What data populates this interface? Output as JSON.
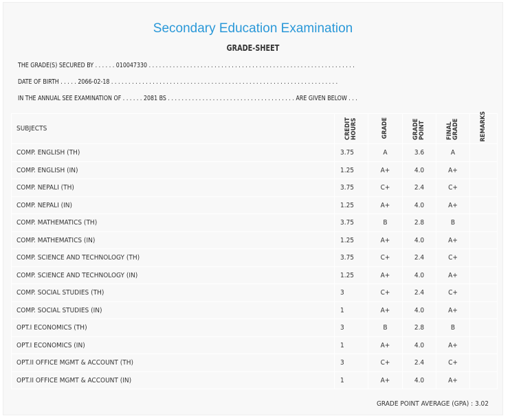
{
  "header": {
    "title": "Secondary Education Examination",
    "subtitle": "GRADE-SHEET"
  },
  "info": {
    "secured_by": "THE GRADE(S) SECURED BY . . . . . . 010047330 . . . . . . . . . . . . . . . . . . . . . . . . . . . . . . . . . . . . . . . . . . . . . . . . . . . . . . . . . . . .",
    "dob": "DATE OF BIRTH . . . . . 2066-02-18 . . . . . . . . . . . . . . . . . . . . . . . . . . . . . . . . . . . . . . . . . . . . . . . . . . . . . . . . . . . . . . . . . .",
    "exam": "IN THE ANNUAL SEE EXAMINATION OF . . . . . . 2081 BS . . . . . . . . . . . . . . . . . . . . . . . . . . . . . . . . . . . . . ARE GIVEN BELOW . . ."
  },
  "table": {
    "headers": [
      "SUBJECTS",
      "CREDIT HOURS",
      "GRADE",
      "GRADE POINT",
      "FINAL GRADE",
      "REMARKS"
    ],
    "rows": [
      [
        "COMP. ENGLISH (TH)",
        "3.75",
        "A",
        "3.6",
        "A",
        ""
      ],
      [
        "COMP. ENGLISH (IN)",
        "1.25",
        "A+",
        "4.0",
        "A+",
        ""
      ],
      [
        "COMP. NEPALI (TH)",
        "3.75",
        "C+",
        "2.4",
        "C+",
        ""
      ],
      [
        "COMP. NEPALI (IN)",
        "1.25",
        "A+",
        "4.0",
        "A+",
        ""
      ],
      [
        "COMP. MATHEMATICS (TH)",
        "3.75",
        "B",
        "2.8",
        "B",
        ""
      ],
      [
        "COMP. MATHEMATICS (IN)",
        "1.25",
        "A+",
        "4.0",
        "A+",
        ""
      ],
      [
        "COMP. SCIENCE AND TECHNOLOGY (TH)",
        "3.75",
        "C+",
        "2.4",
        "C+",
        ""
      ],
      [
        "COMP. SCIENCE AND TECHNOLOGY (IN)",
        "1.25",
        "A+",
        "4.0",
        "A+",
        ""
      ],
      [
        "COMP. SOCIAL STUDIES (TH)",
        "3",
        "C+",
        "2.4",
        "C+",
        ""
      ],
      [
        "COMP. SOCIAL STUDIES (IN)",
        "1",
        "A+",
        "4.0",
        "A+",
        ""
      ],
      [
        "OPT.I ECONOMICS (TH)",
        "3",
        "B",
        "2.8",
        "B",
        ""
      ],
      [
        "OPT.I ECONOMICS (IN)",
        "1",
        "A+",
        "4.0",
        "A+",
        ""
      ],
      [
        "OPT.II OFFICE MGMT & ACCOUNT (TH)",
        "3",
        "C+",
        "2.4",
        "C+",
        ""
      ],
      [
        "OPT.II OFFICE MGMT & ACCOUNT (IN)",
        "1",
        "A+",
        "4.0",
        "A+",
        ""
      ]
    ]
  },
  "gpa": "GRADE POINT AVERAGE (GPA) : 3.02",
  "colors": {
    "title": "#2a98d8",
    "background": "#f8f8f8"
  }
}
